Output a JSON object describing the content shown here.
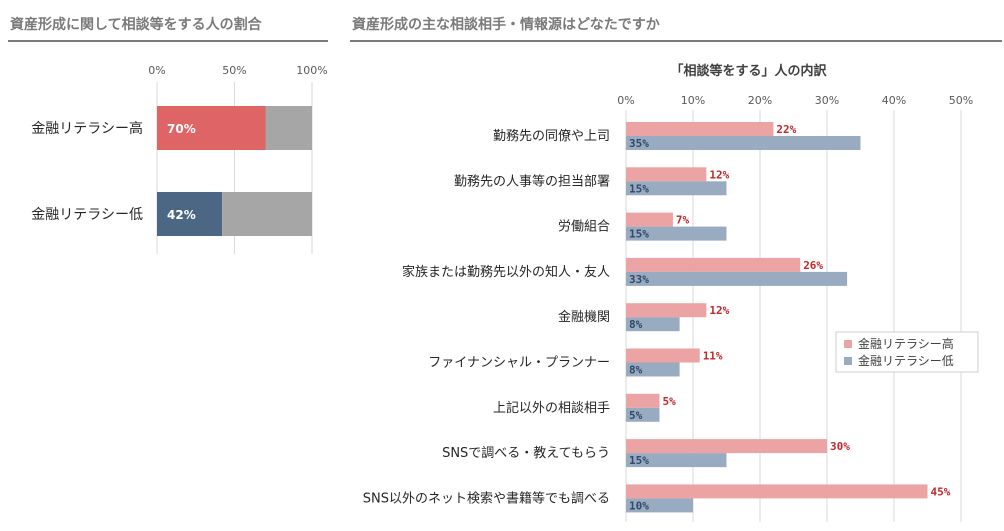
{
  "left_panel": {
    "title": "資産形成に関して相談等をする人の割合"
  },
  "right_panel": {
    "title": "資産形成の主な相談相手・情報源はどなたですか"
  },
  "chart_data": [
    {
      "type": "bar",
      "orientation": "horizontal",
      "stacked": true,
      "categories": [
        "金融リテラシー高",
        "金融リテラシー低"
      ],
      "values": [
        70,
        42
      ],
      "value_labels": [
        "70%",
        "42%"
      ],
      "xlim": [
        0,
        100
      ],
      "x_ticks": [
        "0%",
        "50%",
        "100%"
      ],
      "colors": {
        "high": "#df6465",
        "low": "#4b6783",
        "remainder": "#a6a6a6",
        "label": "#ffffff"
      },
      "grid": true
    },
    {
      "type": "bar",
      "orientation": "horizontal",
      "title": "「相談等をする」人の内訳",
      "categories": [
        "勤務先の同僚や上司",
        "勤務先の人事等の担当部署",
        "労働組合",
        "家族または勤務先以外の知人・友人",
        "金融機関",
        "ファイナンシャル・プランナー",
        "上記以外の相談相手",
        "SNSで調べる・教えてもらう",
        "SNS以外のネット検索や書籍等でも調べる"
      ],
      "series": [
        {
          "name": "金融リテラシー高",
          "values": [
            22,
            12,
            7,
            26,
            12,
            11,
            5,
            30,
            45
          ],
          "labels": [
            "22%",
            "12%",
            "7%",
            "26%",
            "12%",
            "11%",
            "5%",
            "30%",
            "45%"
          ],
          "color": "#eca3a3",
          "label_color": "#c0282d"
        },
        {
          "name": "金融リテラシー低",
          "values": [
            35,
            15,
            15,
            33,
            8,
            8,
            5,
            15,
            10
          ],
          "labels": [
            "35%",
            "15%",
            "15%",
            "33%",
            "8%",
            "8%",
            "5%",
            "15%",
            "10%"
          ],
          "color": "#98abc0",
          "label_color": "#2f4a6b"
        }
      ],
      "xlim": [
        0,
        50
      ],
      "x_ticks": [
        "0%",
        "10%",
        "20%",
        "30%",
        "40%",
        "50%"
      ],
      "legend": "right",
      "grid": true
    }
  ]
}
